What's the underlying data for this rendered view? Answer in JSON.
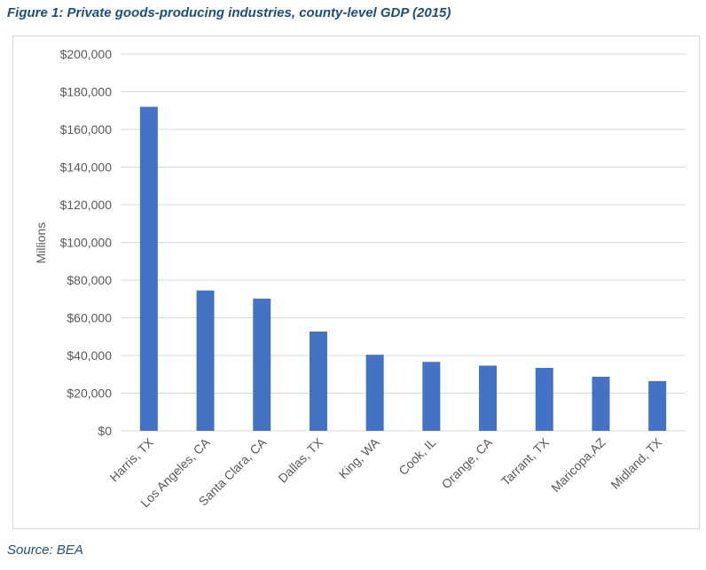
{
  "figure": {
    "title": "Figure 1: Private goods-producing industries, county-level GDP (2015)",
    "source": "Source: BEA"
  },
  "colors": {
    "bar": "#4472c4",
    "grid": "#d9d9d9",
    "title": "#1f4e79",
    "axis_text": "#595959"
  },
  "chart_data": {
    "type": "bar",
    "categories": [
      "Harris, TX",
      "Los Angeles, CA",
      "Santa Clara, CA",
      "Dallas, TX",
      "King, WA",
      "Cook, IL",
      "Orange, CA",
      "Tarrant, TX",
      "Maricopa,AZ",
      "Midland, TX"
    ],
    "values": [
      172000,
      74500,
      70200,
      52700,
      40400,
      36600,
      34600,
      33400,
      28700,
      26400
    ],
    "title": "",
    "xlabel": "",
    "ylabel": "Millions",
    "ylim": [
      0,
      200000
    ],
    "yticks": [
      0,
      20000,
      40000,
      60000,
      80000,
      100000,
      120000,
      140000,
      160000,
      180000,
      200000
    ],
    "ytick_labels": [
      "$0",
      "$20,000",
      "$40,000",
      "$60,000",
      "$80,000",
      "$100,000",
      "$120,000",
      "$140,000",
      "$160,000",
      "$180,000",
      "$200,000"
    ],
    "grid": true,
    "legend": "none"
  }
}
